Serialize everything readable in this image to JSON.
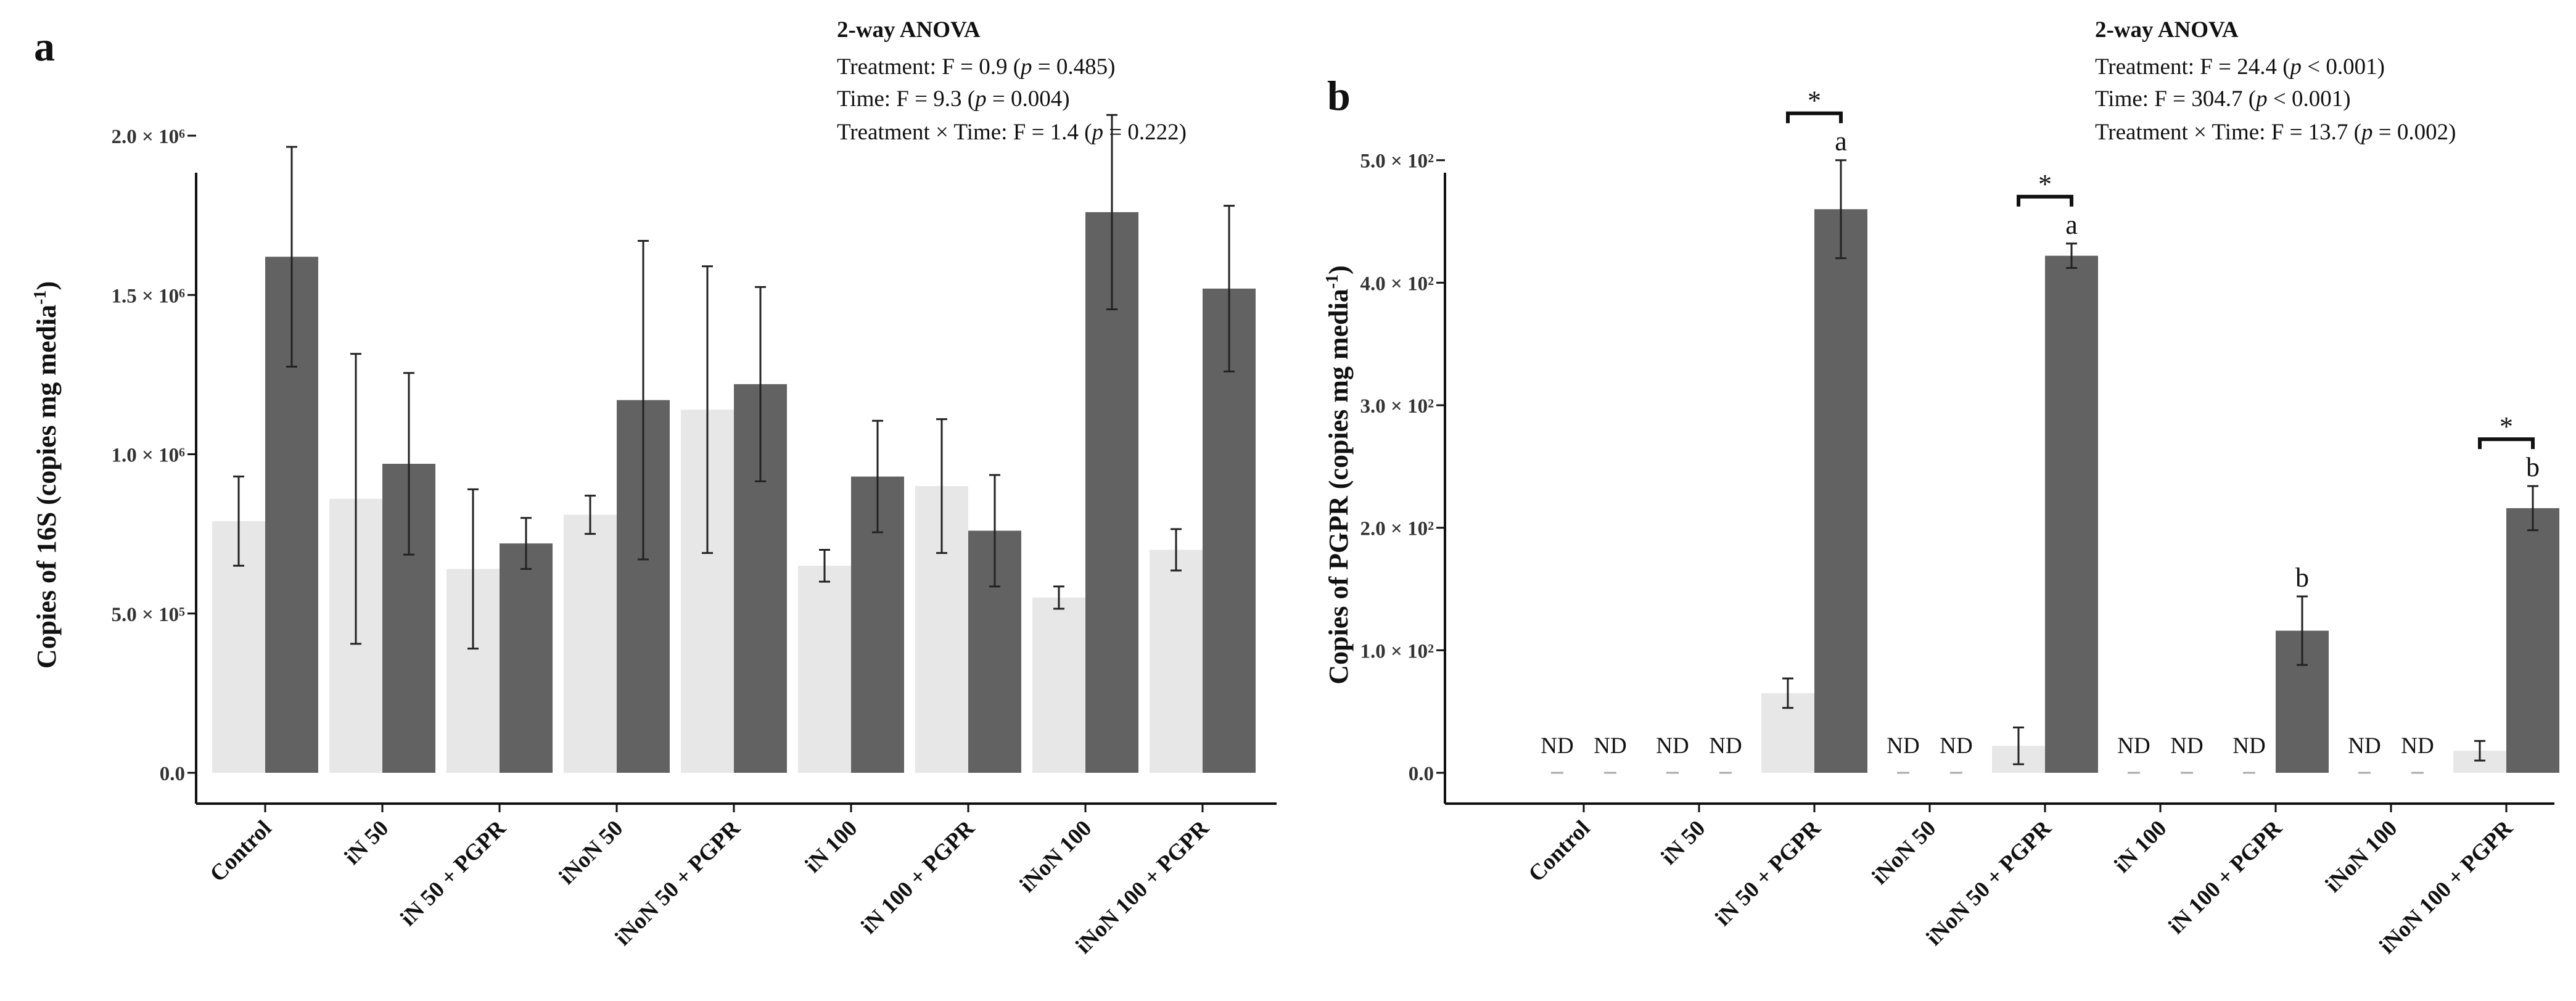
{
  "colors": {
    "light_bar": "#e6e7e6",
    "dark_bar": "#626262",
    "axis": "#111111",
    "error": "#222222",
    "nd_dash": "#aaaaaa"
  },
  "panels": [
    {
      "letter": "a",
      "anova": {
        "title": "2-way ANOVA",
        "lines": [
          [
            "Treatment: F = 0.9 (",
            "p",
            " = 0.485)"
          ],
          [
            "Time: F = 9.3 (",
            "p",
            " = 0.004)"
          ],
          [
            "Treatment × Time: F = 1.4 (",
            "p",
            " = 0.222)"
          ]
        ]
      },
      "ylabel": {
        "main": "Copies of 16S (copies mg media",
        "sup": "-1",
        "end": ")"
      },
      "yticks": [
        {
          "value": 0,
          "label": "0.0"
        },
        {
          "value": 500000,
          "label": "5.0 × 10⁵"
        },
        {
          "value": 1000000,
          "label": "1.0 × 10⁶"
        },
        {
          "value": 1500000,
          "label": "1.5 × 10⁶"
        },
        {
          "value": 2000000,
          "label": "2.0 × 10⁶"
        }
      ]
    },
    {
      "letter": "b",
      "anova": {
        "title": "2-way ANOVA",
        "lines": [
          [
            "Treatment: F = 24.4 (",
            "p",
            " < 0.001)"
          ],
          [
            "Time: F = 304.7 (",
            "p",
            " < 0.001)"
          ],
          [
            "Treatment × Time: F = 13.7 (",
            "p",
            " = 0.002)"
          ]
        ]
      },
      "ylabel": {
        "main": "Copies of  PGPR (copies mg media",
        "sup": "-1",
        "end": ")"
      },
      "yticks": [
        {
          "value": 0,
          "label": "0.0"
        },
        {
          "value": 100,
          "label": "1.0 × 10²"
        },
        {
          "value": 200,
          "label": "2.0 × 10²"
        },
        {
          "value": 300,
          "label": "3.0 × 10²"
        },
        {
          "value": 400,
          "label": "4.0 × 10²"
        },
        {
          "value": 500,
          "label": "5.0 × 10²"
        }
      ]
    }
  ],
  "chart_data": [
    {
      "type": "bar",
      "panel": "a",
      "categories": [
        "Control",
        "iN 50",
        "iN 50 + PGPR",
        "iNoN 50",
        "iNoN 50 + PGPR",
        "iN 100",
        "iN 100 + PGPR",
        "iNoN 100",
        "iNoN 100 + PGPR"
      ],
      "series": [
        {
          "values": [
            790000,
            860000,
            640000,
            810000,
            1140000,
            650000,
            900000,
            550000,
            700000
          ],
          "errors": [
            140000,
            455000,
            250000,
            60000,
            450000,
            50000,
            210000,
            35000,
            65000
          ]
        },
        {
          "values": [
            1620000,
            970000,
            720000,
            1170000,
            1220000,
            930000,
            760000,
            1760000,
            1520000
          ],
          "errors": [
            345000,
            285000,
            80000,
            500000,
            305000,
            175000,
            175000,
            305000,
            260000
          ]
        }
      ],
      "ylabel": "Copies of 16S (copies mg media-1)",
      "ylim": [
        0,
        2000000
      ]
    },
    {
      "type": "bar",
      "panel": "b",
      "categories": [
        "Control",
        "iN 50",
        "iN 50 + PGPR",
        "iNoN 50",
        "iNoN 50 + PGPR",
        "iN 100",
        "iN 100 + PGPR",
        "iNoN 100",
        "iNoN 100 + PGPR"
      ],
      "series": [
        {
          "values": [
            0,
            0,
            65,
            0,
            22,
            0,
            0,
            0,
            18
          ],
          "errors": [
            0,
            0,
            12,
            0,
            15,
            0,
            0,
            0,
            8
          ],
          "not_detected": [
            true,
            true,
            false,
            true,
            false,
            true,
            true,
            true,
            false
          ]
        },
        {
          "values": [
            0,
            0,
            460,
            0,
            422,
            0,
            116,
            0,
            216
          ],
          "errors": [
            0,
            0,
            40,
            0,
            10,
            0,
            28,
            0,
            18
          ],
          "not_detected": [
            true,
            true,
            false,
            true,
            false,
            true,
            false,
            true,
            false
          ]
        }
      ],
      "nd_label": "ND",
      "significance": [
        {
          "category": 2,
          "star": "*",
          "letter": "a"
        },
        {
          "category": 4,
          "star": "*",
          "letter": "a"
        },
        {
          "category": 6,
          "star": "",
          "letter": "b"
        },
        {
          "category": 8,
          "star": "*",
          "letter": "b"
        }
      ],
      "ylabel": "Copies of PGPR (copies mg media-1)",
      "ylim": [
        0,
        520
      ]
    }
  ]
}
